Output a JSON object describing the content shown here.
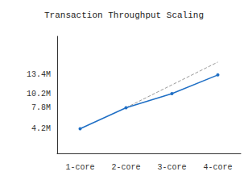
{
  "chart_data": {
    "type": "line",
    "title": "Transaction Throughput Scaling",
    "categories": [
      "1-core",
      "2-core",
      "3-core",
      "4-core"
    ],
    "series": [
      {
        "color": "#1f6fc5",
        "values": [
          4.2,
          7.8,
          10.2,
          13.4
        ],
        "line_style": "solid",
        "marker": "circle"
      },
      {
        "color": "#999999",
        "values": [
          null,
          7.8,
          11.7,
          15.6
        ],
        "line_style": "dashed",
        "marker": "none"
      }
    ],
    "ylim": [
      0,
      20
    ],
    "yticks": [
      {
        "value": 4.2,
        "label": "4.2M"
      },
      {
        "value": 7.8,
        "label": "7.8M"
      },
      {
        "value": 10.2,
        "label": "10.2M"
      },
      {
        "value": 13.4,
        "label": "13.4M"
      }
    ],
    "grid": false
  }
}
